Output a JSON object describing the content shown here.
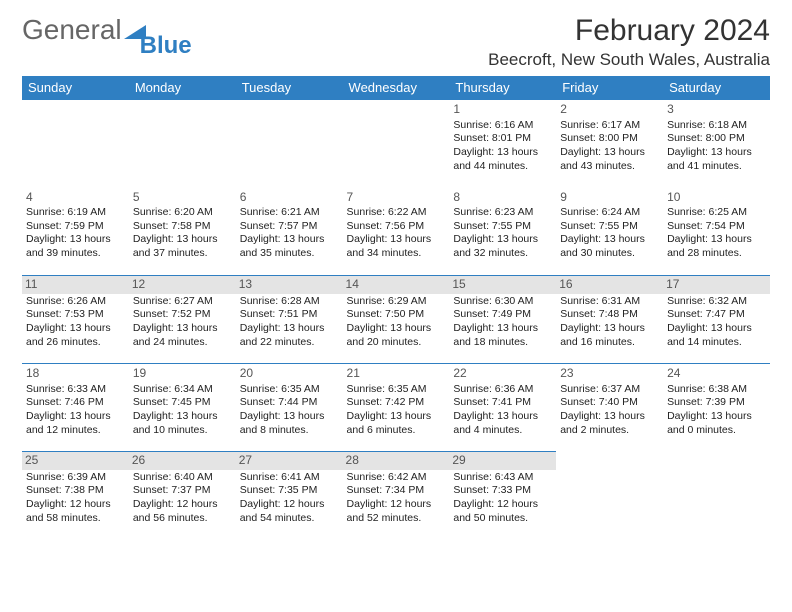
{
  "brand": {
    "part1": "General",
    "part2": "Blue"
  },
  "title": "February 2024",
  "location": "Beecroft, New South Wales, Australia",
  "weekdays": [
    "Sunday",
    "Monday",
    "Tuesday",
    "Wednesday",
    "Thursday",
    "Friday",
    "Saturday"
  ],
  "colors": {
    "header_bg": "#2f7fc2",
    "header_fg": "#ffffff",
    "shade_bg": "#e4e4e4"
  },
  "weeks": [
    [
      null,
      null,
      null,
      null,
      {
        "n": "1",
        "sr": "Sunrise: 6:16 AM",
        "ss": "Sunset: 8:01 PM",
        "dl": "Daylight: 13 hours and 44 minutes."
      },
      {
        "n": "2",
        "sr": "Sunrise: 6:17 AM",
        "ss": "Sunset: 8:00 PM",
        "dl": "Daylight: 13 hours and 43 minutes."
      },
      {
        "n": "3",
        "sr": "Sunrise: 6:18 AM",
        "ss": "Sunset: 8:00 PM",
        "dl": "Daylight: 13 hours and 41 minutes."
      }
    ],
    [
      {
        "n": "4",
        "sr": "Sunrise: 6:19 AM",
        "ss": "Sunset: 7:59 PM",
        "dl": "Daylight: 13 hours and 39 minutes."
      },
      {
        "n": "5",
        "sr": "Sunrise: 6:20 AM",
        "ss": "Sunset: 7:58 PM",
        "dl": "Daylight: 13 hours and 37 minutes."
      },
      {
        "n": "6",
        "sr": "Sunrise: 6:21 AM",
        "ss": "Sunset: 7:57 PM",
        "dl": "Daylight: 13 hours and 35 minutes."
      },
      {
        "n": "7",
        "sr": "Sunrise: 6:22 AM",
        "ss": "Sunset: 7:56 PM",
        "dl": "Daylight: 13 hours and 34 minutes."
      },
      {
        "n": "8",
        "sr": "Sunrise: 6:23 AM",
        "ss": "Sunset: 7:55 PM",
        "dl": "Daylight: 13 hours and 32 minutes."
      },
      {
        "n": "9",
        "sr": "Sunrise: 6:24 AM",
        "ss": "Sunset: 7:55 PM",
        "dl": "Daylight: 13 hours and 30 minutes."
      },
      {
        "n": "10",
        "sr": "Sunrise: 6:25 AM",
        "ss": "Sunset: 7:54 PM",
        "dl": "Daylight: 13 hours and 28 minutes."
      }
    ],
    [
      {
        "n": "11",
        "sr": "Sunrise: 6:26 AM",
        "ss": "Sunset: 7:53 PM",
        "dl": "Daylight: 13 hours and 26 minutes.",
        "shade": true
      },
      {
        "n": "12",
        "sr": "Sunrise: 6:27 AM",
        "ss": "Sunset: 7:52 PM",
        "dl": "Daylight: 13 hours and 24 minutes.",
        "shade": true
      },
      {
        "n": "13",
        "sr": "Sunrise: 6:28 AM",
        "ss": "Sunset: 7:51 PM",
        "dl": "Daylight: 13 hours and 22 minutes.",
        "shade": true
      },
      {
        "n": "14",
        "sr": "Sunrise: 6:29 AM",
        "ss": "Sunset: 7:50 PM",
        "dl": "Daylight: 13 hours and 20 minutes.",
        "shade": true
      },
      {
        "n": "15",
        "sr": "Sunrise: 6:30 AM",
        "ss": "Sunset: 7:49 PM",
        "dl": "Daylight: 13 hours and 18 minutes.",
        "shade": true
      },
      {
        "n": "16",
        "sr": "Sunrise: 6:31 AM",
        "ss": "Sunset: 7:48 PM",
        "dl": "Daylight: 13 hours and 16 minutes.",
        "shade": true
      },
      {
        "n": "17",
        "sr": "Sunrise: 6:32 AM",
        "ss": "Sunset: 7:47 PM",
        "dl": "Daylight: 13 hours and 14 minutes.",
        "shade": true
      }
    ],
    [
      {
        "n": "18",
        "sr": "Sunrise: 6:33 AM",
        "ss": "Sunset: 7:46 PM",
        "dl": "Daylight: 13 hours and 12 minutes."
      },
      {
        "n": "19",
        "sr": "Sunrise: 6:34 AM",
        "ss": "Sunset: 7:45 PM",
        "dl": "Daylight: 13 hours and 10 minutes."
      },
      {
        "n": "20",
        "sr": "Sunrise: 6:35 AM",
        "ss": "Sunset: 7:44 PM",
        "dl": "Daylight: 13 hours and 8 minutes."
      },
      {
        "n": "21",
        "sr": "Sunrise: 6:35 AM",
        "ss": "Sunset: 7:42 PM",
        "dl": "Daylight: 13 hours and 6 minutes."
      },
      {
        "n": "22",
        "sr": "Sunrise: 6:36 AM",
        "ss": "Sunset: 7:41 PM",
        "dl": "Daylight: 13 hours and 4 minutes."
      },
      {
        "n": "23",
        "sr": "Sunrise: 6:37 AM",
        "ss": "Sunset: 7:40 PM",
        "dl": "Daylight: 13 hours and 2 minutes."
      },
      {
        "n": "24",
        "sr": "Sunrise: 6:38 AM",
        "ss": "Sunset: 7:39 PM",
        "dl": "Daylight: 13 hours and 0 minutes."
      }
    ],
    [
      {
        "n": "25",
        "sr": "Sunrise: 6:39 AM",
        "ss": "Sunset: 7:38 PM",
        "dl": "Daylight: 12 hours and 58 minutes.",
        "shade": true
      },
      {
        "n": "26",
        "sr": "Sunrise: 6:40 AM",
        "ss": "Sunset: 7:37 PM",
        "dl": "Daylight: 12 hours and 56 minutes.",
        "shade": true
      },
      {
        "n": "27",
        "sr": "Sunrise: 6:41 AM",
        "ss": "Sunset: 7:35 PM",
        "dl": "Daylight: 12 hours and 54 minutes.",
        "shade": true
      },
      {
        "n": "28",
        "sr": "Sunrise: 6:42 AM",
        "ss": "Sunset: 7:34 PM",
        "dl": "Daylight: 12 hours and 52 minutes.",
        "shade": true
      },
      {
        "n": "29",
        "sr": "Sunrise: 6:43 AM",
        "ss": "Sunset: 7:33 PM",
        "dl": "Daylight: 12 hours and 50 minutes.",
        "shade": true
      },
      null,
      null
    ]
  ]
}
